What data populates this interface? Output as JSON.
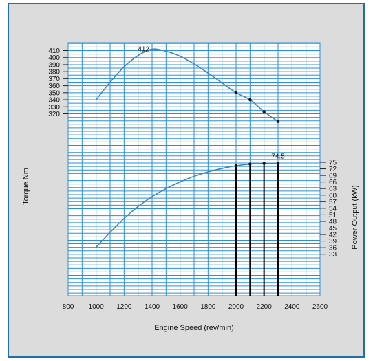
{
  "chart_data": {
    "type": "line",
    "xlabel": "Engine Speed (rev/min)",
    "x_ticks": [
      800,
      1000,
      1200,
      1400,
      1600,
      1800,
      2000,
      2200,
      2400,
      2600
    ],
    "xlim": [
      800,
      2600
    ],
    "y_left": {
      "label": "Torque Nm",
      "ticks": [
        320,
        330,
        340,
        350,
        360,
        370,
        380,
        390,
        400,
        410
      ]
    },
    "y_right": {
      "label": "Power Output (kW)",
      "ticks": [
        33,
        36,
        39,
        42,
        45,
        48,
        51,
        54,
        57,
        60,
        63,
        66,
        69,
        72,
        75
      ]
    },
    "series": [
      {
        "name": "Torque",
        "axis": "left",
        "x": [
          1000,
          1100,
          1200,
          1300,
          1400,
          1500,
          1600,
          1700,
          1800,
          1900,
          2000,
          2100,
          2200,
          2300
        ],
        "y": [
          340,
          365,
          387,
          403,
          412,
          409,
          402,
          391,
          378,
          364,
          350,
          340,
          323,
          309
        ],
        "markers_x": [
          2000,
          2100,
          2200,
          2300
        ]
      },
      {
        "name": "Power Output",
        "axis": "right",
        "x": [
          1000,
          1100,
          1200,
          1300,
          1400,
          1500,
          1600,
          1700,
          1800,
          1900,
          2000,
          2100,
          2200,
          2300
        ],
        "y": [
          36.2,
          43.0,
          49.3,
          54.8,
          59.3,
          63.0,
          66.0,
          68.6,
          70.6,
          72.2,
          73.4,
          74.2,
          74.5,
          74.5
        ],
        "markers_x": [
          2000,
          2100,
          2200,
          2300
        ]
      }
    ],
    "vertical_lines_x": [
      2000,
      2100,
      2200,
      2300
    ],
    "annotations": [
      {
        "text": "412",
        "series": "Torque",
        "x": 1400
      },
      {
        "text": "74.5",
        "series": "Power Output",
        "x": 2300
      }
    ],
    "colors": {
      "line": "#3d86c6",
      "grid": "#2b8fd6",
      "plot_bg": "#ffffff",
      "frame_bg": "#dcdcdc",
      "border": "#1f6fae",
      "vline": "#000000"
    }
  }
}
